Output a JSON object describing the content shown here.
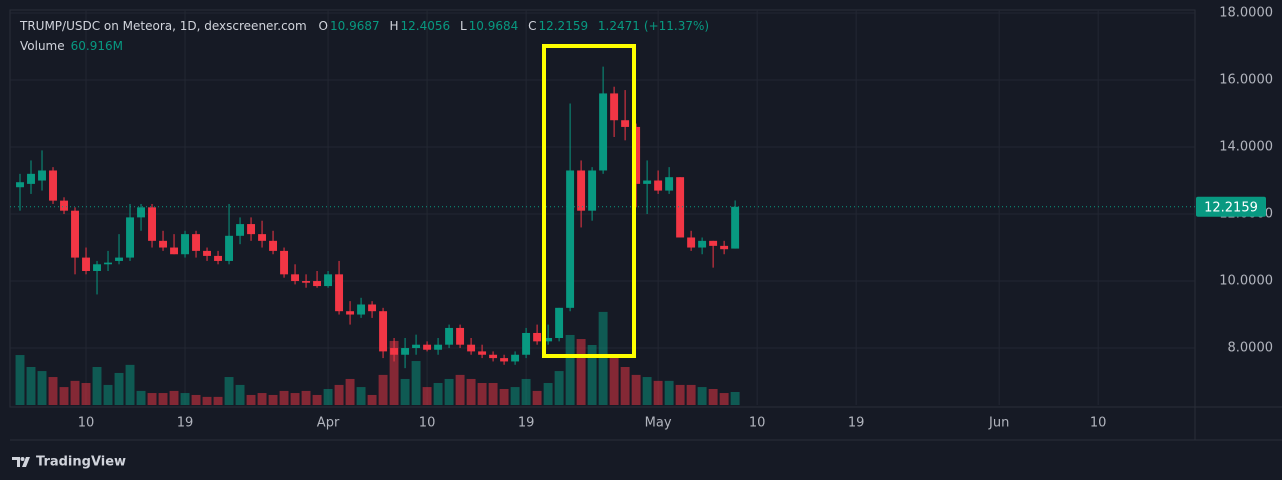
{
  "chart_data": {
    "type": "candlestick",
    "title": "TRUMP/USDC on Meteora, 1D, dexscreener.com",
    "ohlc_labels": [
      "O",
      "H",
      "L",
      "C"
    ],
    "change": 1.2471,
    "change_label": "(+11.37%)",
    "up_color": "#089981",
    "down_color": "#f23645",
    "x": [
      3,
      4,
      5,
      6,
      7,
      8,
      9,
      10,
      11,
      12,
      13,
      14,
      15,
      16,
      17,
      18,
      19,
      20,
      21,
      22,
      23,
      24,
      25,
      26,
      27,
      28,
      29,
      30,
      31,
      32,
      33,
      34,
      35,
      36,
      37,
      38,
      39,
      40,
      41,
      42,
      43,
      44,
      45,
      46,
      47,
      48,
      49,
      50,
      51,
      52,
      53,
      54,
      55,
      56,
      57,
      58,
      59,
      60,
      61,
      62,
      63,
      64,
      65,
      66,
      67,
      68
    ],
    "open": [
      12.8,
      12.9,
      13.0,
      13.3,
      12.4,
      12.1,
      10.7,
      10.3,
      10.5,
      10.6,
      10.7,
      11.9,
      12.2,
      11.2,
      11.0,
      10.8,
      11.4,
      10.9,
      10.75,
      10.6,
      11.35,
      11.7,
      11.4,
      11.2,
      10.9,
      10.2,
      10.0,
      10.0,
      9.85,
      10.2,
      9.1,
      9.0,
      9.3,
      9.1,
      8.0,
      7.8,
      8.0,
      8.1,
      7.95,
      8.1,
      8.6,
      8.1,
      7.9,
      7.8,
      7.7,
      7.6,
      7.8,
      8.45,
      8.2,
      8.3,
      9.2,
      13.3,
      12.1,
      13.3,
      15.6,
      14.8,
      14.6,
      12.9,
      13.0,
      12.7,
      13.1,
      11.3,
      11.0,
      11.2,
      11.05,
      10.9687
    ],
    "high": [
      13.2,
      13.6,
      13.9,
      13.4,
      12.5,
      12.2,
      11.0,
      10.6,
      10.9,
      11.4,
      12.3,
      12.3,
      12.3,
      11.5,
      11.4,
      11.5,
      11.5,
      11.0,
      10.9,
      12.3,
      11.9,
      11.9,
      11.8,
      11.5,
      11.0,
      10.5,
      10.2,
      10.3,
      10.3,
      10.6,
      9.4,
      9.5,
      9.4,
      9.2,
      8.3,
      8.3,
      8.4,
      8.2,
      8.3,
      8.7,
      8.7,
      8.3,
      8.1,
      7.9,
      7.8,
      7.9,
      8.6,
      8.7,
      8.7,
      9.2,
      15.3,
      13.6,
      13.4,
      16.4,
      15.8,
      15.7,
      14.7,
      13.6,
      13.3,
      13.4,
      13.1,
      11.5,
      11.3,
      11.2,
      11.2,
      12.4056
    ],
    "low": [
      12.1,
      12.6,
      12.7,
      12.3,
      12.0,
      10.2,
      10.2,
      9.6,
      10.3,
      10.5,
      10.6,
      11.5,
      11.0,
      10.9,
      10.8,
      10.7,
      10.7,
      10.6,
      10.5,
      10.5,
      11.1,
      11.2,
      11.0,
      10.8,
      10.1,
      9.9,
      9.8,
      9.8,
      9.8,
      9.0,
      8.7,
      8.9,
      8.9,
      7.7,
      7.6,
      7.4,
      7.8,
      7.9,
      7.8,
      8.0,
      8.0,
      7.8,
      7.7,
      7.6,
      7.5,
      7.5,
      7.7,
      8.1,
      8.1,
      8.2,
      9.1,
      11.6,
      11.8,
      13.2,
      14.3,
      14.2,
      12.2,
      12.0,
      12.6,
      12.6,
      11.3,
      10.9,
      10.8,
      10.4,
      10.8,
      10.9684
    ],
    "close": [
      12.95,
      13.2,
      13.3,
      12.4,
      12.1,
      10.7,
      10.3,
      10.5,
      10.55,
      10.7,
      11.9,
      12.2,
      11.2,
      11.0,
      10.8,
      11.4,
      10.9,
      10.75,
      10.6,
      11.35,
      11.7,
      11.4,
      11.2,
      10.9,
      10.2,
      10.0,
      9.95,
      9.85,
      10.2,
      9.1,
      9.0,
      9.3,
      9.1,
      7.9,
      7.8,
      8.0,
      8.1,
      7.95,
      8.1,
      8.6,
      8.1,
      7.9,
      7.8,
      7.7,
      7.6,
      7.8,
      8.45,
      8.2,
      8.3,
      9.2,
      13.3,
      12.1,
      13.3,
      15.6,
      14.8,
      14.6,
      12.9,
      13.0,
      12.7,
      13.1,
      11.3,
      11.0,
      11.2,
      11.05,
      10.95,
      12.2159
    ],
    "volume": {
      "name": "Volume",
      "last_label": "60.916M",
      "ylim": [
        0,
        1850
      ],
      "values": [
        234,
        178,
        159,
        131,
        84,
        113,
        103,
        178,
        94,
        150,
        188,
        66,
        56,
        56,
        66,
        56,
        47,
        38,
        38,
        131,
        94,
        47,
        56,
        47,
        66,
        56,
        66,
        47,
        75,
        94,
        122,
        84,
        47,
        141,
        300,
        122,
        206,
        84,
        103,
        122,
        141,
        122,
        103,
        103,
        75,
        84,
        122,
        66,
        103,
        159,
        328,
        309,
        281,
        436,
        234,
        178,
        141,
        131,
        113,
        113,
        94,
        94,
        84,
        75,
        56,
        60.916
      ]
    },
    "xlim": [
      2.09,
      109.8
    ],
    "xticks": [
      {
        "value": 9,
        "label": "10"
      },
      {
        "value": 18,
        "label": "19"
      },
      {
        "value": 31,
        "label": "Apr"
      },
      {
        "value": 40,
        "label": "10"
      },
      {
        "value": 49,
        "label": "19"
      },
      {
        "value": 61,
        "label": "May"
      },
      {
        "value": 70,
        "label": "10"
      },
      {
        "value": 79,
        "label": "19"
      },
      {
        "value": 92,
        "label": "Jun"
      },
      {
        "value": 101,
        "label": "10"
      }
    ],
    "ylim": [
      6.3,
      18.09
    ],
    "yticks": [
      {
        "value": 8,
        "label": "8.0000"
      },
      {
        "value": 10,
        "label": "10.0000"
      },
      {
        "value": 12,
        "label": "12.0000"
      },
      {
        "value": 14,
        "label": "14.0000"
      },
      {
        "value": 16,
        "label": "16.0000"
      },
      {
        "value": 18,
        "label": "18.0000"
      }
    ],
    "grid": true,
    "brand": "TradingView"
  }
}
